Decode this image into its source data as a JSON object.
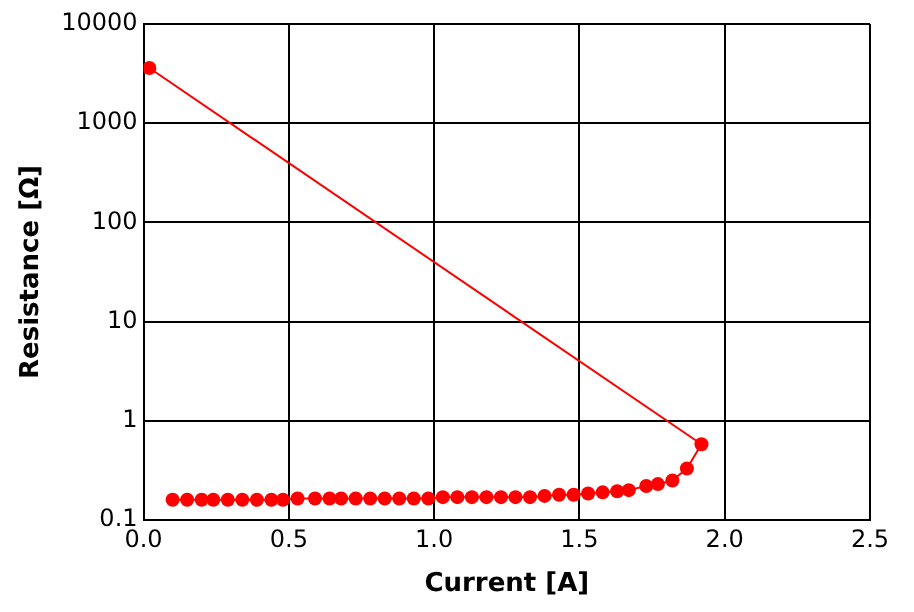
{
  "chart_data": {
    "type": "line",
    "xlabel": "Current [A]",
    "ylabel": "Resistance [Ω]",
    "xlim": [
      0,
      2.5
    ],
    "xticks": [
      {
        "value": 0,
        "label": "0.0"
      },
      0.5,
      {
        "value": 1,
        "label": "1.0"
      },
      1.5,
      {
        "value": 2,
        "label": "2.0"
      },
      2.5
    ],
    "ylim": [
      0.1,
      10000
    ],
    "yticks": [
      0.1,
      1,
      10,
      100,
      1000,
      10000
    ],
    "log": "y",
    "grid": true,
    "legend": false,
    "marker": "circle",
    "line_style": "solid",
    "series": [
      {
        "color": "#ff0000",
        "x": [
          0.02,
          1.92,
          1.87,
          1.82,
          1.77,
          1.73,
          1.67,
          1.63,
          1.58,
          1.53,
          1.48,
          1.43,
          1.38,
          1.33,
          1.28,
          1.23,
          1.18,
          1.13,
          1.08,
          1.03,
          0.98,
          0.93,
          0.88,
          0.83,
          0.78,
          0.73,
          0.68,
          0.64,
          0.59,
          0.53,
          0.48,
          0.44,
          0.39,
          0.34,
          0.29,
          0.24,
          0.2,
          0.15,
          0.1
        ],
        "values": [
          3600,
          0.58,
          0.33,
          0.25,
          0.23,
          0.22,
          0.2,
          0.195,
          0.19,
          0.185,
          0.18,
          0.18,
          0.175,
          0.17,
          0.17,
          0.17,
          0.17,
          0.17,
          0.17,
          0.17,
          0.165,
          0.165,
          0.165,
          0.165,
          0.165,
          0.165,
          0.165,
          0.165,
          0.165,
          0.165,
          0.16,
          0.16,
          0.16,
          0.16,
          0.16,
          0.16,
          0.16,
          0.16,
          0.16
        ]
      }
    ]
  }
}
